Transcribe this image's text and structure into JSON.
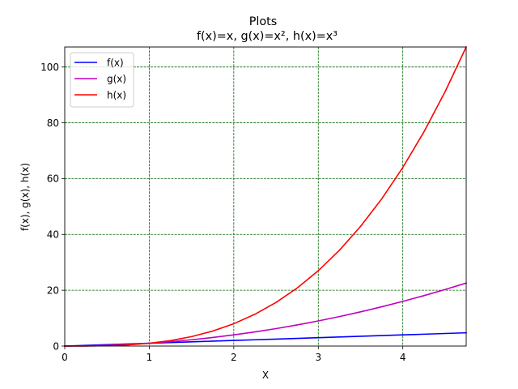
{
  "title": "Plots",
  "subtitle": "f(x)=x, g(x)=x², h(x)=x³",
  "colors": {
    "f": "#0000ff",
    "g": "#bf00bf",
    "h": "#ff0000",
    "grid": "#006400"
  },
  "chart_data": {
    "type": "line",
    "title": "Plots",
    "subtitle": "f(x)=x, g(x)=x², h(x)=x³",
    "xlabel": "X",
    "ylabel": "f(x), g(x), h(x)",
    "xlim": [
      0,
      4.75
    ],
    "ylim": [
      0,
      107.17
    ],
    "xticks": [
      0,
      1,
      2,
      3,
      4
    ],
    "xtick_labels": [
      "0",
      "1",
      "2",
      "3",
      "4"
    ],
    "yticks": [
      0,
      20,
      40,
      60,
      80,
      100
    ],
    "ytick_labels": [
      "0",
      "20",
      "40",
      "60",
      "80",
      "100"
    ],
    "grid": true,
    "grid_style": "dashed",
    "legend_position": "upper-left",
    "x": [
      0,
      0.25,
      0.5,
      0.75,
      1,
      1.25,
      1.5,
      1.75,
      2,
      2.25,
      2.5,
      2.75,
      3,
      3.25,
      3.5,
      3.75,
      4,
      4.25,
      4.5,
      4.75
    ],
    "series": [
      {
        "name": "f(x)",
        "color": "#0000ff",
        "values": [
          0,
          0.25,
          0.5,
          0.75,
          1,
          1.25,
          1.5,
          1.75,
          2,
          2.25,
          2.5,
          2.75,
          3,
          3.25,
          3.5,
          3.75,
          4,
          4.25,
          4.5,
          4.75
        ]
      },
      {
        "name": "g(x)",
        "color": "#bf00bf",
        "values": [
          0,
          0.0625,
          0.25,
          0.5625,
          1,
          1.5625,
          2.25,
          3.0625,
          4,
          5.0625,
          6.25,
          7.5625,
          9,
          10.5625,
          12.25,
          14.0625,
          16,
          18.0625,
          20.25,
          22.5625
        ]
      },
      {
        "name": "h(x)",
        "color": "#ff0000",
        "values": [
          0,
          0.0156,
          0.125,
          0.4219,
          1,
          1.9531,
          3.375,
          5.3594,
          8,
          11.3906,
          15.625,
          20.7969,
          27,
          34.3281,
          42.875,
          52.7344,
          64,
          76.7656,
          91.125,
          107.1719
        ]
      }
    ]
  }
}
